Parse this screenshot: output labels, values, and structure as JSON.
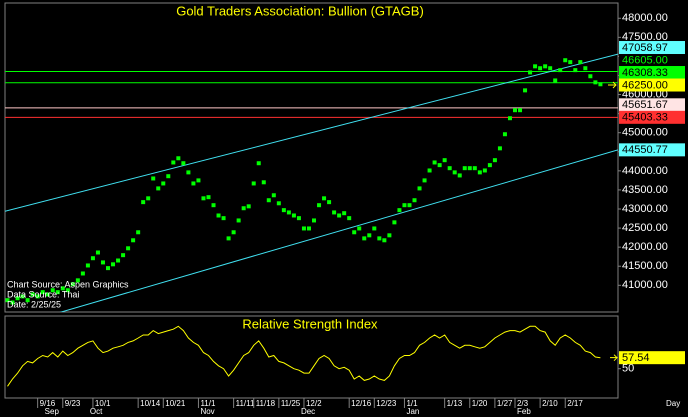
{
  "chart_data": [
    {
      "type": "scatter",
      "title": "Gold Traders Association: Bullion (GTAGB)",
      "notes": [
        "Chart Source: Aspen Graphics",
        "Data Source: Thai",
        "Date: 2/25/25"
      ],
      "x_unit": "Day",
      "categories": [
        null,
        null,
        null,
        null,
        null,
        null,
        "9/16",
        null,
        null,
        null,
        null,
        "9/23",
        null,
        null,
        null,
        null,
        null,
        "10/1",
        null,
        null,
        null,
        null,
        null,
        null,
        null,
        null,
        "10/14",
        null,
        null,
        null,
        null,
        "10/21",
        null,
        null,
        null,
        null,
        null,
        null,
        "11/1",
        null,
        null,
        null,
        null,
        null,
        null,
        "11/11",
        null,
        null,
        null,
        "11/18",
        null,
        null,
        null,
        null,
        "11/25",
        null,
        null,
        null,
        null,
        "12/2",
        null,
        null,
        null,
        null,
        null,
        null,
        null,
        null,
        "12/16",
        null,
        null,
        null,
        null,
        "12/23",
        null,
        null,
        null,
        null,
        null,
        "1/1",
        null,
        null,
        null,
        null,
        null,
        null,
        null,
        "1/13",
        null,
        null,
        null,
        null,
        "1/20",
        null,
        null,
        null,
        null,
        "1/27",
        null,
        null,
        null,
        "2/3",
        null,
        null,
        null,
        null,
        "2/10",
        null,
        null,
        null,
        null,
        "2/17",
        null,
        null,
        null,
        null,
        null,
        null,
        null
      ],
      "months": [
        null,
        null,
        null,
        null,
        null,
        null,
        null,
        "Sep",
        null,
        null,
        null,
        null,
        null,
        null,
        null,
        null,
        "Oct",
        null,
        null,
        null,
        null,
        null,
        null,
        null,
        null,
        null,
        null,
        null,
        null,
        null,
        null,
        null,
        null,
        null,
        null,
        null,
        null,
        null,
        "Nov",
        null,
        null,
        null,
        null,
        null,
        null,
        null,
        null,
        null,
        null,
        null,
        null,
        null,
        null,
        null,
        null,
        null,
        null,
        null,
        "Dec",
        null,
        null,
        null,
        null,
        null,
        null,
        null,
        null,
        null,
        null,
        null,
        null,
        null,
        null,
        null,
        null,
        null,
        null,
        null,
        null,
        "Jan",
        null,
        null,
        null,
        null,
        null,
        null,
        null,
        null,
        null,
        null,
        null,
        null,
        null,
        null,
        null,
        null,
        null,
        null,
        null,
        null,
        null,
        "Feb",
        null,
        null,
        null,
        null,
        null,
        null,
        null,
        null,
        null,
        null,
        null,
        null,
        null,
        null,
        null,
        null,
        null
      ],
      "xlim": [
        -0.5,
        121.5
      ],
      "ylim": [
        40300,
        48400
      ],
      "yticks": [
        {
          "value": 41000,
          "label": "41000.00"
        },
        {
          "value": 41500,
          "label": "41500.00"
        },
        {
          "value": 42000,
          "label": "42000.00"
        },
        {
          "value": 42500,
          "label": "42500.00"
        },
        {
          "value": 43000,
          "label": "43000.00"
        },
        {
          "value": 43500,
          "label": "43500.00"
        },
        {
          "value": 44000,
          "label": "44000.00"
        },
        {
          "value": 44500,
          "label": "44500.00"
        },
        {
          "value": 45000,
          "label": "45000.00"
        },
        {
          "value": 45500,
          "label": "45500.00"
        },
        {
          "value": 46000,
          "label": "46000.00"
        },
        {
          "value": 46500,
          "label": "46500.00"
        },
        {
          "value": 47000,
          "label": "47000.00"
        },
        {
          "value": 47500,
          "label": "47500.00"
        },
        {
          "value": 48000,
          "label": "48000.00"
        }
      ],
      "series": [
        {
          "color": "#00ff00",
          "values": [
            40610,
            40550,
            40660,
            40710,
            40610,
            40760,
            40710,
            40820,
            40760,
            40870,
            40820,
            40920,
            40870,
            41030,
            41130,
            41310,
            41520,
            41710,
            41860,
            41600,
            41450,
            41550,
            41650,
            41790,
            41970,
            42180,
            42390,
            43180,
            43280,
            43800,
            43540,
            43670,
            43860,
            44220,
            44330,
            44200,
            43960,
            43670,
            43750,
            43280,
            43310,
            43100,
            42830,
            42760,
            42230,
            42390,
            42700,
            43020,
            43070,
            43670,
            44200,
            43700,
            43230,
            43360,
            43150,
            42970,
            42910,
            42830,
            42760,
            42490,
            42490,
            42700,
            43100,
            43280,
            43180,
            42910,
            42830,
            42890,
            42760,
            42390,
            42490,
            42230,
            42310,
            42490,
            42230,
            42180,
            42310,
            42650,
            42970,
            43100,
            43100,
            43230,
            43540,
            43750,
            44010,
            44220,
            44150,
            44280,
            44070,
            43960,
            43880,
            44070,
            44070,
            44070,
            43960,
            44010,
            44150,
            44280,
            44590,
            44960,
            45380,
            45590,
            45590,
            46110,
            46580,
            46740,
            46690,
            46740,
            46690,
            46370,
            46640,
            46900,
            46850,
            46640,
            46850,
            46690,
            46480,
            46320,
            46270
          ]
        }
      ],
      "trendlines": [
        {
          "color": "#40e0f0",
          "tag": "#60ffff",
          "x": [
            -0.5,
            121.5
          ],
          "values": [
            42940,
            47058.97
          ]
        },
        {
          "color": "#40e0f0",
          "tag": "#60ffff",
          "x": [
            -0.5,
            121.5
          ],
          "values": [
            39870,
            44550.77
          ]
        }
      ],
      "levels": [
        {
          "value": 46605,
          "label": "46605.00",
          "color": "#00ff00",
          "tag": "#000000"
        },
        {
          "value": 46308.33,
          "label": "46308.33",
          "color": "#00ff00",
          "tag": "#00ff00"
        },
        {
          "value": 45651.67,
          "label": "45651.67",
          "color": "#ffc8c8",
          "tag": "#ffe4e4"
        },
        {
          "value": 45403.33,
          "label": "45403.33",
          "color": "#ff3030",
          "tag": "#ff3030"
        }
      ],
      "last": {
        "value": 46250,
        "label": "46250.00",
        "tag": "#ffff00"
      }
    },
    {
      "type": "line",
      "title": "Relative Strength Index",
      "xlim": [
        -0.5,
        121.5
      ],
      "ylim": [
        30,
        86
      ],
      "yticks": [
        50
      ],
      "series": [
        {
          "color": "#ffff00",
          "tag": "#ffff00",
          "values": [
            38,
            43,
            47,
            52,
            55,
            54,
            57,
            59,
            58,
            61,
            58,
            62,
            59,
            61,
            64,
            66,
            68,
            69,
            64,
            61,
            62,
            64,
            65,
            66,
            68,
            69,
            71,
            73,
            73,
            76,
            74,
            75,
            76,
            77,
            79,
            76,
            71,
            68,
            66,
            61,
            59,
            55,
            52,
            50,
            45,
            49,
            54,
            59,
            61,
            66,
            69,
            64,
            58,
            59,
            55,
            54,
            52,
            50,
            49,
            47,
            47,
            52,
            57,
            59,
            57,
            52,
            50,
            51,
            49,
            43,
            45,
            42,
            43,
            45,
            43,
            42,
            45,
            52,
            57,
            59,
            59,
            61,
            66,
            68,
            71,
            73,
            71,
            73,
            68,
            66,
            64,
            66,
            66,
            65,
            64,
            65,
            68,
            71,
            73,
            75,
            76,
            76,
            75,
            77,
            79,
            79,
            76,
            75,
            69,
            66,
            71,
            73,
            71,
            68,
            66,
            62,
            61,
            58,
            57.54
          ]
        }
      ]
    }
  ]
}
